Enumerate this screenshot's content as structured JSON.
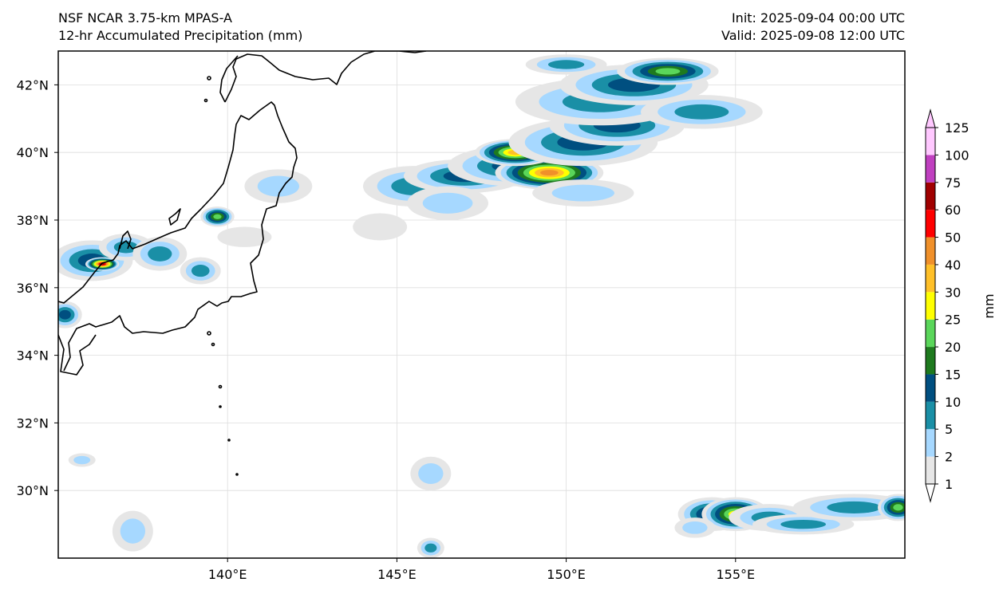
{
  "header": {
    "model": "NSF NCAR 3.75-km MPAS-A",
    "product": "12-hr Accumulated Precipitation (mm)",
    "init": "Init: 2025-09-04 00:00 UTC",
    "valid": "Valid: 2025-09-08 12:00 UTC"
  },
  "map": {
    "lat_range": [
      28,
      43
    ],
    "lon_range": [
      135,
      160
    ],
    "lat_ticks": [
      {
        "value": 30,
        "label": "30°N"
      },
      {
        "value": 32,
        "label": "32°N"
      },
      {
        "value": 34,
        "label": "34°N"
      },
      {
        "value": 36,
        "label": "36°N"
      },
      {
        "value": 38,
        "label": "38°N"
      },
      {
        "value": 40,
        "label": "40°N"
      },
      {
        "value": 42,
        "label": "42°N"
      }
    ],
    "lon_ticks": [
      {
        "value": 140,
        "label": "140°E"
      },
      {
        "value": 145,
        "label": "145°E"
      },
      {
        "value": 150,
        "label": "150°E"
      },
      {
        "value": 155,
        "label": "155°E"
      }
    ],
    "coastline_color": "#000000",
    "gridline_color": "#dddddd"
  },
  "colorbar": {
    "unit_label": "mm",
    "levels": [
      "1",
      "2",
      "5",
      "10",
      "15",
      "20",
      "25",
      "30",
      "40",
      "50",
      "60",
      "75",
      "100",
      "125"
    ],
    "colors": [
      "#e6e6e6",
      "#a6d8ff",
      "#1a8fa6",
      "#004f80",
      "#1e7a1e",
      "#5ad65a",
      "#ffff00",
      "#ffc028",
      "#f0902a",
      "#ff0000",
      "#a00000",
      "#c040c0",
      "#ffc8ff"
    ]
  },
  "precip_regions": [
    {
      "name": "northeast-band",
      "cells": [
        [
          39.0,
          145.5,
          0.6,
          1.5,
          2
        ],
        [
          39.3,
          147.0,
          0.5,
          1.8,
          3
        ],
        [
          39.6,
          148.5,
          0.6,
          2.0,
          3
        ],
        [
          39.4,
          149.5,
          0.5,
          1.6,
          8
        ],
        [
          40.0,
          148.5,
          0.4,
          1.2,
          7
        ],
        [
          40.3,
          150.5,
          0.7,
          2.2,
          3
        ],
        [
          40.8,
          151.5,
          0.6,
          2.0,
          3
        ],
        [
          41.5,
          151.0,
          0.7,
          2.5,
          2
        ],
        [
          42.0,
          152.0,
          0.6,
          2.2,
          3
        ],
        [
          42.4,
          153.0,
          0.4,
          1.5,
          5
        ],
        [
          41.2,
          154.0,
          0.5,
          1.8,
          2
        ],
        [
          38.8,
          150.5,
          0.4,
          1.5,
          1
        ],
        [
          38.5,
          146.5,
          0.5,
          1.2,
          1
        ],
        [
          37.8,
          144.5,
          0.4,
          0.8,
          0
        ],
        [
          42.6,
          150.0,
          0.3,
          1.2,
          2
        ]
      ]
    },
    {
      "name": "japan-sea",
      "cells": [
        [
          36.8,
          136.0,
          0.6,
          1.2,
          3
        ],
        [
          36.7,
          136.3,
          0.2,
          0.5,
          10
        ],
        [
          37.2,
          137.0,
          0.4,
          0.8,
          2
        ],
        [
          37.0,
          138.0,
          0.5,
          0.8,
          2
        ],
        [
          38.1,
          139.7,
          0.3,
          0.5,
          5
        ],
        [
          39.0,
          141.5,
          0.5,
          1.0,
          1
        ],
        [
          35.2,
          135.2,
          0.4,
          0.5,
          3
        ],
        [
          36.5,
          139.2,
          0.4,
          0.6,
          2
        ],
        [
          37.5,
          140.5,
          0.3,
          0.8,
          0
        ]
      ]
    },
    {
      "name": "south-cluster",
      "cells": [
        [
          29.3,
          154.3,
          0.5,
          1.0,
          4
        ],
        [
          29.3,
          155.0,
          0.5,
          1.0,
          6
        ],
        [
          29.2,
          156.0,
          0.4,
          1.2,
          2
        ],
        [
          29.0,
          157.0,
          0.3,
          1.5,
          2
        ],
        [
          29.5,
          158.5,
          0.4,
          1.8,
          2
        ],
        [
          29.5,
          159.8,
          0.4,
          0.6,
          5
        ],
        [
          28.9,
          153.8,
          0.3,
          0.6,
          1
        ]
      ]
    },
    {
      "name": "scattered-south",
      "cells": [
        [
          30.5,
          146.0,
          0.5,
          0.6,
          1
        ],
        [
          28.3,
          146.0,
          0.3,
          0.4,
          2
        ],
        [
          28.8,
          137.2,
          0.6,
          0.6,
          1
        ],
        [
          30.9,
          135.7,
          0.2,
          0.4,
          1
        ]
      ]
    }
  ]
}
